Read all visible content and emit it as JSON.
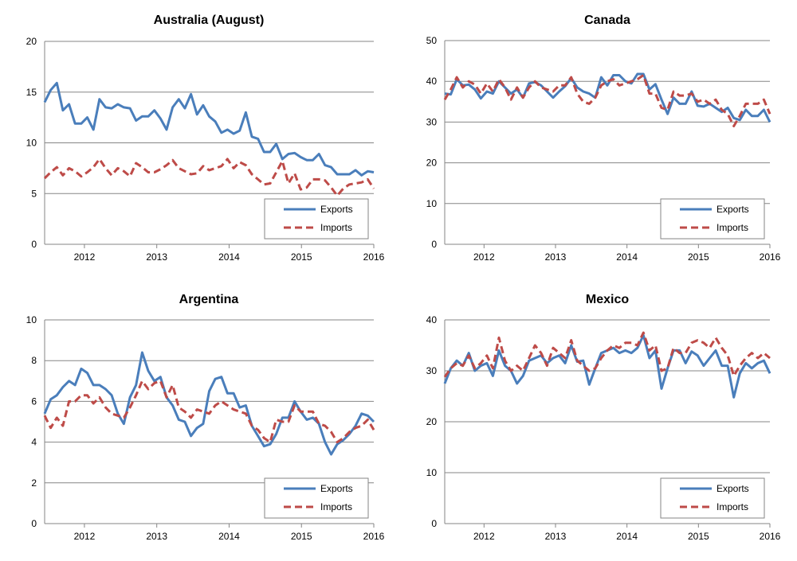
{
  "colors": {
    "exports": "#4a7ebb",
    "imports": "#be4b48",
    "grid": "#868686"
  },
  "chart_data": [
    {
      "type": "line",
      "title": "Australia (August)",
      "xlabel": "",
      "ylabel": "",
      "ylim": [
        0,
        20
      ],
      "yticks": [
        0,
        5,
        10,
        15,
        20
      ],
      "xlim": [
        2011.45,
        2016.0
      ],
      "xticks": [
        2012,
        2013,
        2014,
        2015,
        2016
      ],
      "grid": true,
      "legend": "bottom-right",
      "series": [
        {
          "name": "Exports",
          "color": "#4a7ebb",
          "style": "solid",
          "values": [
            14.0,
            15.2,
            15.9,
            13.2,
            13.8,
            11.9,
            11.9,
            12.5,
            11.3,
            14.3,
            13.5,
            13.4,
            13.8,
            13.5,
            13.4,
            12.2,
            12.6,
            12.6,
            13.2,
            12.4,
            11.3,
            13.5,
            14.3,
            13.4,
            14.8,
            12.8,
            13.7,
            12.6,
            12.1,
            11.0,
            11.3,
            10.9,
            11.2,
            13.0,
            10.6,
            10.4,
            9.1,
            9.1,
            9.9,
            8.4,
            8.9,
            9.0,
            8.6,
            8.3,
            8.3,
            8.9,
            7.8,
            7.6,
            6.9,
            6.9,
            6.9,
            7.3,
            6.8,
            7.2,
            7.1
          ]
        },
        {
          "name": "Imports",
          "color": "#be4b48",
          "style": "dashed",
          "values": [
            6.5,
            7.1,
            7.6,
            6.8,
            7.5,
            7.2,
            6.7,
            7.1,
            7.6,
            8.4,
            7.5,
            6.8,
            7.5,
            7.2,
            6.7,
            8.0,
            7.6,
            7.1,
            7.1,
            7.4,
            7.8,
            8.3,
            7.5,
            7.2,
            6.9,
            7.0,
            7.7,
            7.3,
            7.5,
            7.7,
            8.4,
            7.5,
            8.1,
            7.8,
            6.9,
            6.4,
            5.9,
            6.0,
            7.1,
            8.2,
            6.0,
            7.0,
            5.4,
            5.6,
            6.4,
            6.4,
            6.3,
            5.6,
            4.8,
            5.5,
            5.9,
            6.0,
            6.1,
            6.4,
            5.5
          ]
        }
      ]
    },
    {
      "type": "line",
      "title": "Canada",
      "xlabel": "",
      "ylabel": "",
      "ylim": [
        0,
        50
      ],
      "yticks": [
        0,
        10,
        20,
        30,
        40,
        50
      ],
      "xlim": [
        2011.45,
        2016.0
      ],
      "xticks": [
        2012,
        2013,
        2014,
        2015,
        2016
      ],
      "grid": true,
      "legend": "bottom-right",
      "series": [
        {
          "name": "Exports",
          "color": "#4a7ebb",
          "style": "solid",
          "values": [
            37.0,
            36.8,
            40.5,
            39.0,
            39.2,
            38.0,
            35.8,
            37.5,
            37.0,
            40.0,
            38.5,
            37.0,
            38.0,
            36.0,
            39.5,
            39.8,
            39.0,
            37.5,
            36.0,
            37.5,
            38.8,
            40.8,
            38.5,
            37.5,
            37.0,
            36.0,
            41.0,
            39.0,
            41.5,
            41.5,
            40.0,
            39.5,
            41.8,
            41.8,
            38.0,
            39.3,
            35.5,
            32.0,
            36.0,
            34.5,
            34.5,
            37.5,
            34.0,
            33.8,
            34.5,
            33.5,
            32.5,
            33.5,
            31.0,
            30.5,
            33.0,
            31.5,
            31.5,
            33.0,
            30.0
          ]
        },
        {
          "name": "Imports",
          "color": "#be4b48",
          "style": "dashed",
          "values": [
            35.5,
            38.0,
            41.0,
            38.5,
            40.0,
            39.2,
            37.0,
            39.5,
            37.5,
            40.5,
            38.5,
            35.5,
            38.5,
            36.0,
            38.5,
            40.0,
            38.5,
            38.0,
            37.5,
            39.0,
            39.0,
            41.0,
            37.0,
            35.0,
            34.5,
            36.0,
            39.0,
            40.0,
            40.5,
            39.0,
            39.5,
            40.0,
            40.5,
            41.5,
            37.0,
            37.0,
            33.5,
            33.0,
            37.5,
            36.5,
            36.5,
            37.0,
            35.0,
            35.5,
            34.5,
            35.5,
            33.0,
            32.0,
            29.0,
            31.5,
            34.5,
            34.5,
            34.5,
            35.5,
            32.0
          ]
        }
      ]
    },
    {
      "type": "line",
      "title": "Argentina",
      "xlabel": "",
      "ylabel": "",
      "ylim": [
        0,
        10
      ],
      "yticks": [
        0,
        2,
        4,
        6,
        8,
        10
      ],
      "xlim": [
        2011.45,
        2016.0
      ],
      "xticks": [
        2012,
        2013,
        2014,
        2015,
        2016
      ],
      "grid": true,
      "legend": "bottom-right",
      "series": [
        {
          "name": "Exports",
          "color": "#4a7ebb",
          "style": "solid",
          "values": [
            5.4,
            6.1,
            6.3,
            6.7,
            7.0,
            6.8,
            7.6,
            7.4,
            6.8,
            6.8,
            6.6,
            6.3,
            5.4,
            4.9,
            6.2,
            6.8,
            8.4,
            7.5,
            7.0,
            7.2,
            6.2,
            5.8,
            5.1,
            5.0,
            4.3,
            4.7,
            4.9,
            6.5,
            7.1,
            7.2,
            6.4,
            6.4,
            5.7,
            5.8,
            4.8,
            4.3,
            3.8,
            3.9,
            4.4,
            5.2,
            5.2,
            6.0,
            5.5,
            5.1,
            5.2,
            4.9,
            4.0,
            3.4,
            3.9,
            4.1,
            4.4,
            4.8,
            5.4,
            5.3,
            5.0
          ]
        },
        {
          "name": "Imports",
          "color": "#be4b48",
          "style": "dashed",
          "values": [
            5.3,
            4.7,
            5.2,
            4.8,
            6.0,
            6.0,
            6.3,
            6.3,
            5.9,
            6.2,
            5.7,
            5.4,
            5.3,
            5.2,
            5.7,
            6.3,
            7.0,
            6.6,
            6.9,
            7.0,
            6.2,
            6.8,
            5.7,
            5.5,
            5.2,
            5.6,
            5.5,
            5.4,
            5.8,
            6.0,
            5.8,
            5.6,
            5.5,
            5.4,
            4.8,
            4.6,
            4.2,
            4.0,
            5.1,
            5.0,
            5.0,
            5.8,
            5.5,
            5.5,
            5.5,
            4.9,
            4.8,
            4.5,
            4.0,
            4.2,
            4.5,
            4.7,
            4.8,
            5.1,
            4.6
          ]
        }
      ]
    },
    {
      "type": "line",
      "title": "Mexico",
      "xlabel": "",
      "ylabel": "",
      "ylim": [
        0,
        40
      ],
      "yticks": [
        0,
        10,
        20,
        30,
        40
      ],
      "xlim": [
        2011.45,
        2016.0
      ],
      "xticks": [
        2012,
        2013,
        2014,
        2015,
        2016
      ],
      "grid": true,
      "legend": "bottom-right",
      "series": [
        {
          "name": "Exports",
          "color": "#4a7ebb",
          "style": "solid",
          "values": [
            27.5,
            30.5,
            32.0,
            31.0,
            33.5,
            30.0,
            31.0,
            31.5,
            29.0,
            34.0,
            31.0,
            30.0,
            27.5,
            29.0,
            32.0,
            32.5,
            33.0,
            31.5,
            32.5,
            33.0,
            31.5,
            35.0,
            31.8,
            32.0,
            27.3,
            30.5,
            33.5,
            34.0,
            34.5,
            33.5,
            34.0,
            33.5,
            34.5,
            37.0,
            32.5,
            34.0,
            26.5,
            30.5,
            34.0,
            34.0,
            31.5,
            33.8,
            33.0,
            31.0,
            32.5,
            34.0,
            31.0,
            31.0,
            24.8,
            29.5,
            31.5,
            30.5,
            31.5,
            32.0,
            29.5
          ]
        },
        {
          "name": "Imports",
          "color": "#be4b48",
          "style": "dashed",
          "values": [
            28.8,
            30.5,
            31.5,
            31.0,
            33.0,
            30.5,
            31.5,
            33.0,
            30.5,
            36.5,
            32.0,
            30.0,
            31.0,
            30.0,
            32.5,
            35.0,
            33.5,
            31.0,
            34.5,
            33.5,
            32.5,
            36.0,
            32.0,
            31.0,
            30.0,
            30.5,
            32.5,
            34.0,
            35.0,
            34.5,
            35.5,
            35.5,
            35.0,
            37.5,
            34.0,
            35.0,
            30.0,
            30.5,
            34.5,
            33.5,
            33.5,
            35.5,
            36.0,
            35.5,
            34.5,
            36.5,
            34.5,
            33.0,
            29.0,
            31.0,
            32.5,
            33.5,
            32.5,
            33.5,
            32.5
          ]
        }
      ]
    }
  ]
}
